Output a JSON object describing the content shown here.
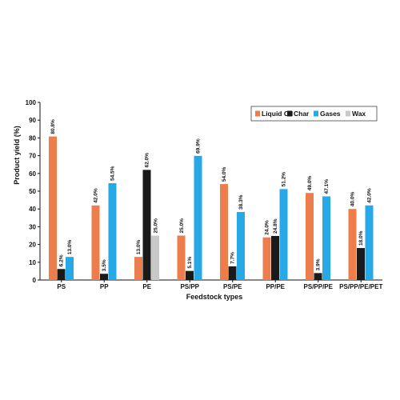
{
  "chart_data": {
    "type": "bar",
    "ylabel": "Product yield (%)",
    "xlabel": "Feedstock types",
    "ylim": [
      0,
      100
    ],
    "yticks": [
      0,
      10,
      20,
      30,
      40,
      50,
      60,
      70,
      80,
      90,
      100
    ],
    "legend_position": "top-right",
    "grid": false,
    "categories": [
      "PS",
      "PP",
      "PE",
      "PS/PP",
      "PS/PE",
      "PP/PE",
      "PS/PP/PE",
      "PS/PP/PE/PET"
    ],
    "series": [
      {
        "name": "Liquid Oil",
        "color": "#ED7D4A",
        "values": [
          80.8,
          42.0,
          13.0,
          25.0,
          54.0,
          24.0,
          49.0,
          40.0
        ],
        "labels": [
          "80.8%",
          "42.0%",
          "13.0%",
          "25.0%",
          "54.0%",
          "24.0%",
          "49.0%",
          "40.0%"
        ]
      },
      {
        "name": "Char",
        "color": "#1A1A1A",
        "values": [
          6.2,
          3.5,
          62.0,
          5.1,
          7.7,
          24.8,
          3.9,
          18.0
        ],
        "labels": [
          "6.2%",
          "3.5%",
          "62.0%",
          "5.1%",
          "7.7%",
          "24.8%",
          "3.9%",
          "18.0%"
        ]
      },
      {
        "name": "Gases",
        "color": "#27A9E8",
        "values": [
          13.0,
          54.5,
          null,
          69.9,
          38.3,
          51.2,
          47.1,
          42.0
        ],
        "labels": [
          "13.0%",
          "54.5%",
          "",
          "69.9%",
          "38.3%",
          "51.2%",
          "47.1%",
          "42.0%"
        ]
      },
      {
        "name": "Wax",
        "color": "#C8C8C8",
        "values": [
          null,
          null,
          25.0,
          null,
          null,
          null,
          null,
          null
        ],
        "labels": [
          "",
          "",
          "25.0%",
          "",
          "",
          "",
          "",
          ""
        ]
      }
    ]
  }
}
